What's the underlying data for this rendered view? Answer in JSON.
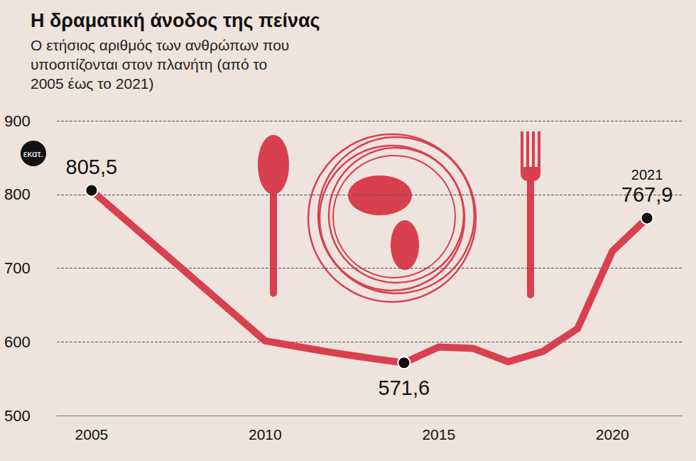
{
  "chart_data": {
    "type": "line",
    "title": "Η δραματική άνοδος της πείνας",
    "subtitle": "Ο ετήσιος αριθμός των ανθρώπων που υποσιτίζονται στον πλανήτη (από το 2005 έως το 2021)",
    "y_label": "εκατ.",
    "x": [
      2005,
      2010,
      2011,
      2012,
      2013,
      2014,
      2015,
      2016,
      2017,
      2018,
      2019,
      2020,
      2021
    ],
    "values": [
      805.5,
      601.3,
      593,
      585,
      578,
      571.6,
      593,
      591,
      573,
      587,
      618,
      723,
      767.9
    ],
    "value_labels": [
      "805,5",
      null,
      null,
      null,
      null,
      "571,6",
      null,
      null,
      null,
      null,
      null,
      null,
      "767,9"
    ],
    "annotations": [
      {
        "x": 2021,
        "text": "2021"
      }
    ],
    "color": "#d8404f",
    "marker": "circle",
    "xlim": [
      2004,
      2022
    ],
    "xticks": [
      2005,
      2010,
      2015,
      2020
    ],
    "ylim": [
      500,
      900
    ],
    "yticks": [
      500,
      600,
      700,
      800,
      900
    ],
    "grid": true
  }
}
